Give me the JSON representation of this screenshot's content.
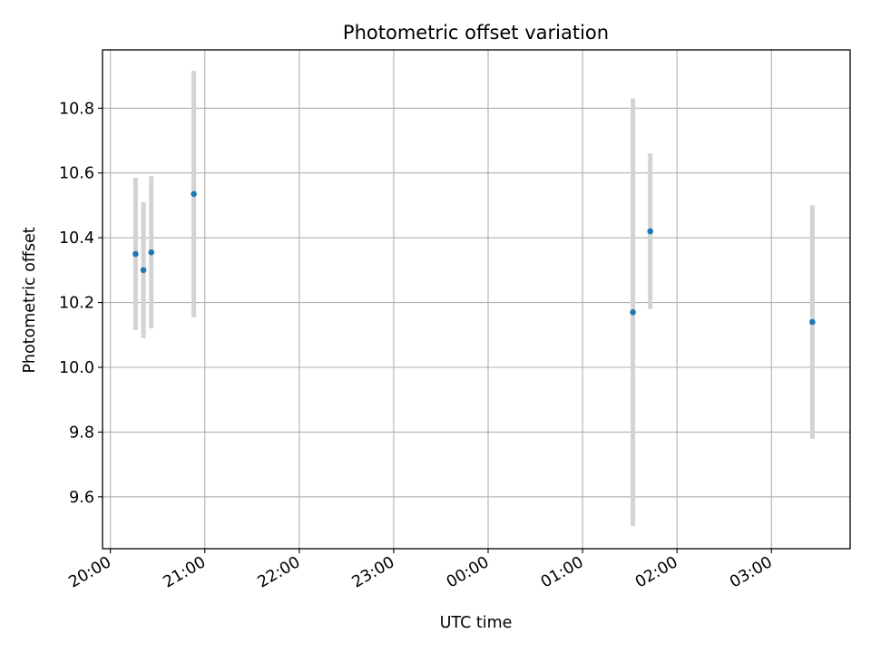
{
  "chart_data": {
    "type": "scatter",
    "title": "Photometric offset variation",
    "xlabel": "UTC time",
    "ylabel": "Photometric offset",
    "x_tick_labels": [
      "20:00",
      "21:00",
      "22:00",
      "23:00",
      "00:00",
      "01:00",
      "02:00",
      "03:00"
    ],
    "y_ticks": [
      9.6,
      9.8,
      10.0,
      10.2,
      10.4,
      10.6,
      10.8
    ],
    "y_tick_labels": [
      "9.6",
      "9.8",
      "10.0",
      "10.2",
      "10.4",
      "10.6",
      "10.8"
    ],
    "xlim": [
      "19:55",
      "03:50"
    ],
    "ylim": [
      9.44,
      10.98
    ],
    "grid": true,
    "point_color": "#1f77b4",
    "errorbar_color": "#d3d3d3",
    "series": [
      {
        "x": [
          "20:16",
          "20:21",
          "20:26",
          "20:53",
          "01:32",
          "01:43",
          "03:26"
        ],
        "y": [
          10.35,
          10.3,
          10.355,
          10.535,
          10.17,
          10.42,
          10.14
        ],
        "yerr_low": [
          10.115,
          10.09,
          10.12,
          10.155,
          9.51,
          10.18,
          9.78
        ],
        "yerr_high": [
          10.585,
          10.51,
          10.59,
          10.915,
          10.83,
          10.66,
          10.5
        ]
      }
    ]
  }
}
